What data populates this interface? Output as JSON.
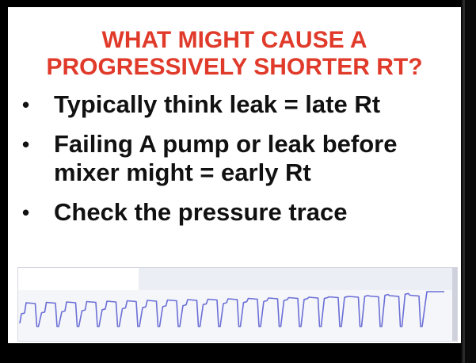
{
  "slide": {
    "title_line1": "WHAT MIGHT CAUSE A",
    "title_line2": "PROGRESSIVELY SHORTER RT?",
    "bullets": [
      {
        "line1": "Typically think leak = late Rt",
        "line2": ""
      },
      {
        "line1": "Failing A pump or leak before",
        "line2": "mixer might = early Rt"
      },
      {
        "line1": "Check the pressure trace",
        "line2": ""
      }
    ],
    "bullet_char": "•"
  },
  "trace": {
    "icon": "pressure-trace-plot",
    "line_color": "#6b6fd6"
  }
}
